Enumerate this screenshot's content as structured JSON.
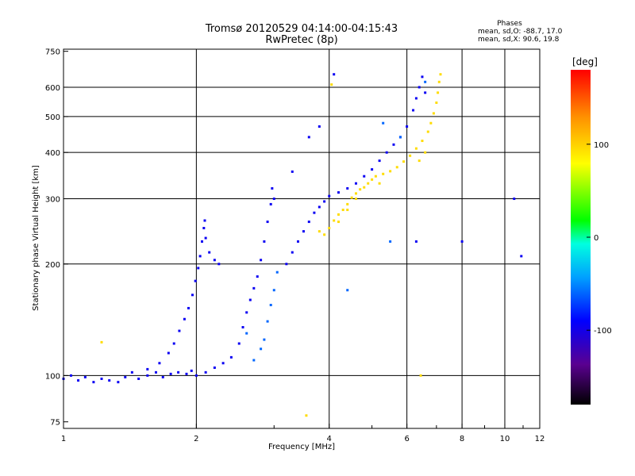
{
  "chart_data": {
    "type": "scatter",
    "title": "Tromsø 20120529 04:14:00-04:15:43",
    "subtitle": "RwPretec (8p)",
    "xlabel": "Frequency [MHz]",
    "ylabel": "Stationary phase Virtual Height [km]",
    "x_scale": "log",
    "y_scale": "log",
    "xlim": [
      1,
      12
    ],
    "ylim": [
      72,
      760
    ],
    "x_ticks": [
      "1",
      "2",
      "4",
      "6",
      "8",
      "10",
      "12"
    ],
    "x_tick_values": [
      1,
      2,
      4,
      6,
      8,
      10,
      12
    ],
    "x_gridlines": [
      2,
      4,
      6,
      8,
      10
    ],
    "y_ticks": [
      "75",
      "100",
      "200",
      "300",
      "400",
      "500",
      "600",
      "750"
    ],
    "y_tick_values": [
      75,
      100,
      200,
      300,
      400,
      500,
      600,
      750
    ],
    "y_gridlines": [
      100,
      200,
      300,
      400,
      500,
      600
    ],
    "grid": true,
    "phase_stats": {
      "heading": "Phases",
      "line_o": "mean, sd,O: -88.7, 17.0",
      "line_x": "mean, sd,X:  90.6, 19.8"
    },
    "colorbar": {
      "unit_label": "[deg]",
      "range": [
        -180,
        180
      ],
      "tick_values": [
        100,
        0,
        -100
      ],
      "tick_labels": [
        "100",
        "0",
        "-100"
      ]
    },
    "series": [
      {
        "polarity": "O",
        "phase_deg": -95,
        "points": [
          [
            1.0,
            98
          ],
          [
            1.04,
            100
          ],
          [
            1.08,
            97
          ],
          [
            1.12,
            99
          ],
          [
            1.17,
            96
          ],
          [
            1.22,
            98
          ],
          [
            1.27,
            97
          ],
          [
            1.33,
            96
          ],
          [
            1.38,
            99
          ],
          [
            1.43,
            102
          ],
          [
            1.48,
            98
          ],
          [
            1.55,
            100
          ],
          [
            1.62,
            102
          ],
          [
            1.68,
            99
          ],
          [
            1.75,
            101
          ],
          [
            1.82,
            102
          ],
          [
            1.9,
            101
          ],
          [
            1.95,
            103
          ],
          [
            1.55,
            104
          ],
          [
            1.65,
            108
          ],
          [
            1.73,
            115
          ],
          [
            1.78,
            122
          ],
          [
            1.83,
            132
          ],
          [
            1.88,
            142
          ],
          [
            1.92,
            152
          ],
          [
            1.96,
            165
          ],
          [
            1.99,
            180
          ],
          [
            2.02,
            195
          ],
          [
            2.04,
            210
          ],
          [
            2.06,
            230
          ],
          [
            2.08,
            250
          ],
          [
            2.09,
            262
          ],
          [
            2.1,
            235
          ],
          [
            2.14,
            215
          ],
          [
            2.2,
            205
          ],
          [
            2.25,
            200
          ],
          [
            2.0,
            100
          ],
          [
            2.1,
            102
          ],
          [
            2.2,
            105
          ],
          [
            2.3,
            108
          ],
          [
            2.4,
            112
          ],
          [
            2.5,
            122
          ],
          [
            2.55,
            135
          ],
          [
            2.6,
            148
          ],
          [
            2.65,
            160
          ],
          [
            2.7,
            172
          ],
          [
            2.75,
            185
          ],
          [
            2.8,
            205
          ],
          [
            2.85,
            230
          ],
          [
            2.9,
            260
          ],
          [
            2.95,
            290
          ],
          [
            2.97,
            320
          ],
          [
            3.0,
            300
          ],
          [
            3.2,
            200
          ],
          [
            3.3,
            215
          ],
          [
            3.4,
            230
          ],
          [
            3.5,
            245
          ],
          [
            3.6,
            260
          ],
          [
            3.7,
            275
          ],
          [
            3.8,
            285
          ],
          [
            3.9,
            295
          ],
          [
            4.0,
            305
          ],
          [
            4.2,
            312
          ],
          [
            4.4,
            320
          ],
          [
            4.6,
            330
          ],
          [
            4.8,
            345
          ],
          [
            5.0,
            360
          ],
          [
            5.2,
            380
          ],
          [
            5.4,
            400
          ],
          [
            5.6,
            420
          ],
          [
            5.8,
            440
          ],
          [
            6.0,
            470
          ],
          [
            6.2,
            520
          ],
          [
            6.3,
            560
          ],
          [
            6.4,
            600
          ],
          [
            6.5,
            640
          ],
          [
            6.6,
            580
          ],
          [
            3.8,
            470
          ],
          [
            4.1,
            650
          ],
          [
            3.6,
            440
          ],
          [
            3.3,
            355
          ],
          [
            8.0,
            230
          ],
          [
            10.5,
            300
          ],
          [
            10.9,
            210
          ],
          [
            6.3,
            230
          ]
        ]
      },
      {
        "polarity": "X",
        "phase_deg": 95,
        "points": [
          [
            3.8,
            245
          ],
          [
            3.9,
            240
          ],
          [
            4.0,
            250
          ],
          [
            4.1,
            262
          ],
          [
            4.2,
            272
          ],
          [
            4.3,
            280
          ],
          [
            4.4,
            290
          ],
          [
            4.5,
            302
          ],
          [
            4.6,
            310
          ],
          [
            4.7,
            318
          ],
          [
            4.8,
            322
          ],
          [
            4.9,
            330
          ],
          [
            5.0,
            338
          ],
          [
            5.1,
            345
          ],
          [
            5.3,
            350
          ],
          [
            5.5,
            356
          ],
          [
            5.7,
            365
          ],
          [
            5.9,
            378
          ],
          [
            6.1,
            392
          ],
          [
            6.3,
            410
          ],
          [
            6.5,
            430
          ],
          [
            6.7,
            455
          ],
          [
            6.8,
            480
          ],
          [
            6.9,
            510
          ],
          [
            7.0,
            545
          ],
          [
            7.05,
            580
          ],
          [
            7.1,
            620
          ],
          [
            7.15,
            650
          ],
          [
            6.6,
            400
          ],
          [
            6.4,
            380
          ],
          [
            5.2,
            330
          ],
          [
            4.6,
            300
          ],
          [
            4.4,
            280
          ],
          [
            4.2,
            260
          ],
          [
            1.22,
            123
          ],
          [
            3.55,
            78
          ],
          [
            6.45,
            100
          ],
          [
            4.05,
            610
          ]
        ]
      },
      {
        "polarity": "mixed",
        "phase_deg": -60,
        "points": [
          [
            2.7,
            110
          ],
          [
            2.8,
            118
          ],
          [
            2.85,
            125
          ],
          [
            2.9,
            140
          ],
          [
            2.95,
            155
          ],
          [
            3.0,
            170
          ],
          [
            3.05,
            190
          ],
          [
            2.6,
            130
          ],
          [
            5.5,
            230
          ],
          [
            5.3,
            480
          ],
          [
            6.6,
            620
          ],
          [
            4.4,
            170
          ],
          [
            5.8,
            440
          ]
        ]
      }
    ]
  }
}
